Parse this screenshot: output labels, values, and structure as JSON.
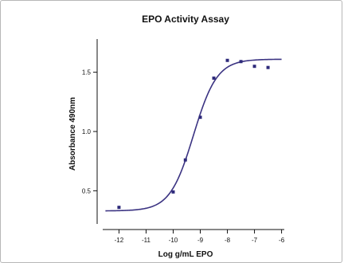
{
  "chart_data": {
    "type": "scatter",
    "title": "EPO Activity Assay",
    "xlabel": "Log g/mL EPO",
    "ylabel": "Absorbance 490nm",
    "xlim": [
      -12.6,
      -5.9
    ],
    "ylim": [
      0.22,
      1.78
    ],
    "x_ticks": [
      -12,
      -11,
      -10,
      -9,
      -8,
      -7,
      -6
    ],
    "x_tick_labels": [
      "-12",
      "-11",
      "-10",
      "-9",
      "-8",
      "-7",
      "-6"
    ],
    "y_ticks": [
      0.5,
      1.0,
      1.5
    ],
    "y_tick_labels": [
      "0.5",
      "1.0",
      "1.5"
    ],
    "grid": false,
    "series": [
      {
        "values_type": "points",
        "x": [
          -12.0,
          -10.0,
          -9.55,
          -9.0,
          -8.5,
          -8.0,
          -7.5,
          -7.0,
          -6.5
        ],
        "y": [
          0.36,
          0.49,
          0.76,
          1.12,
          1.45,
          1.6,
          1.59,
          1.55,
          1.54
        ]
      },
      {
        "values_type": "fit",
        "model": "sigmoidal dose-response",
        "bottom": 0.33,
        "top": 1.61,
        "log_ec50": -9.25,
        "hill_slope": 1.0,
        "x_range": [
          -12.5,
          -6.0
        ]
      }
    ]
  }
}
